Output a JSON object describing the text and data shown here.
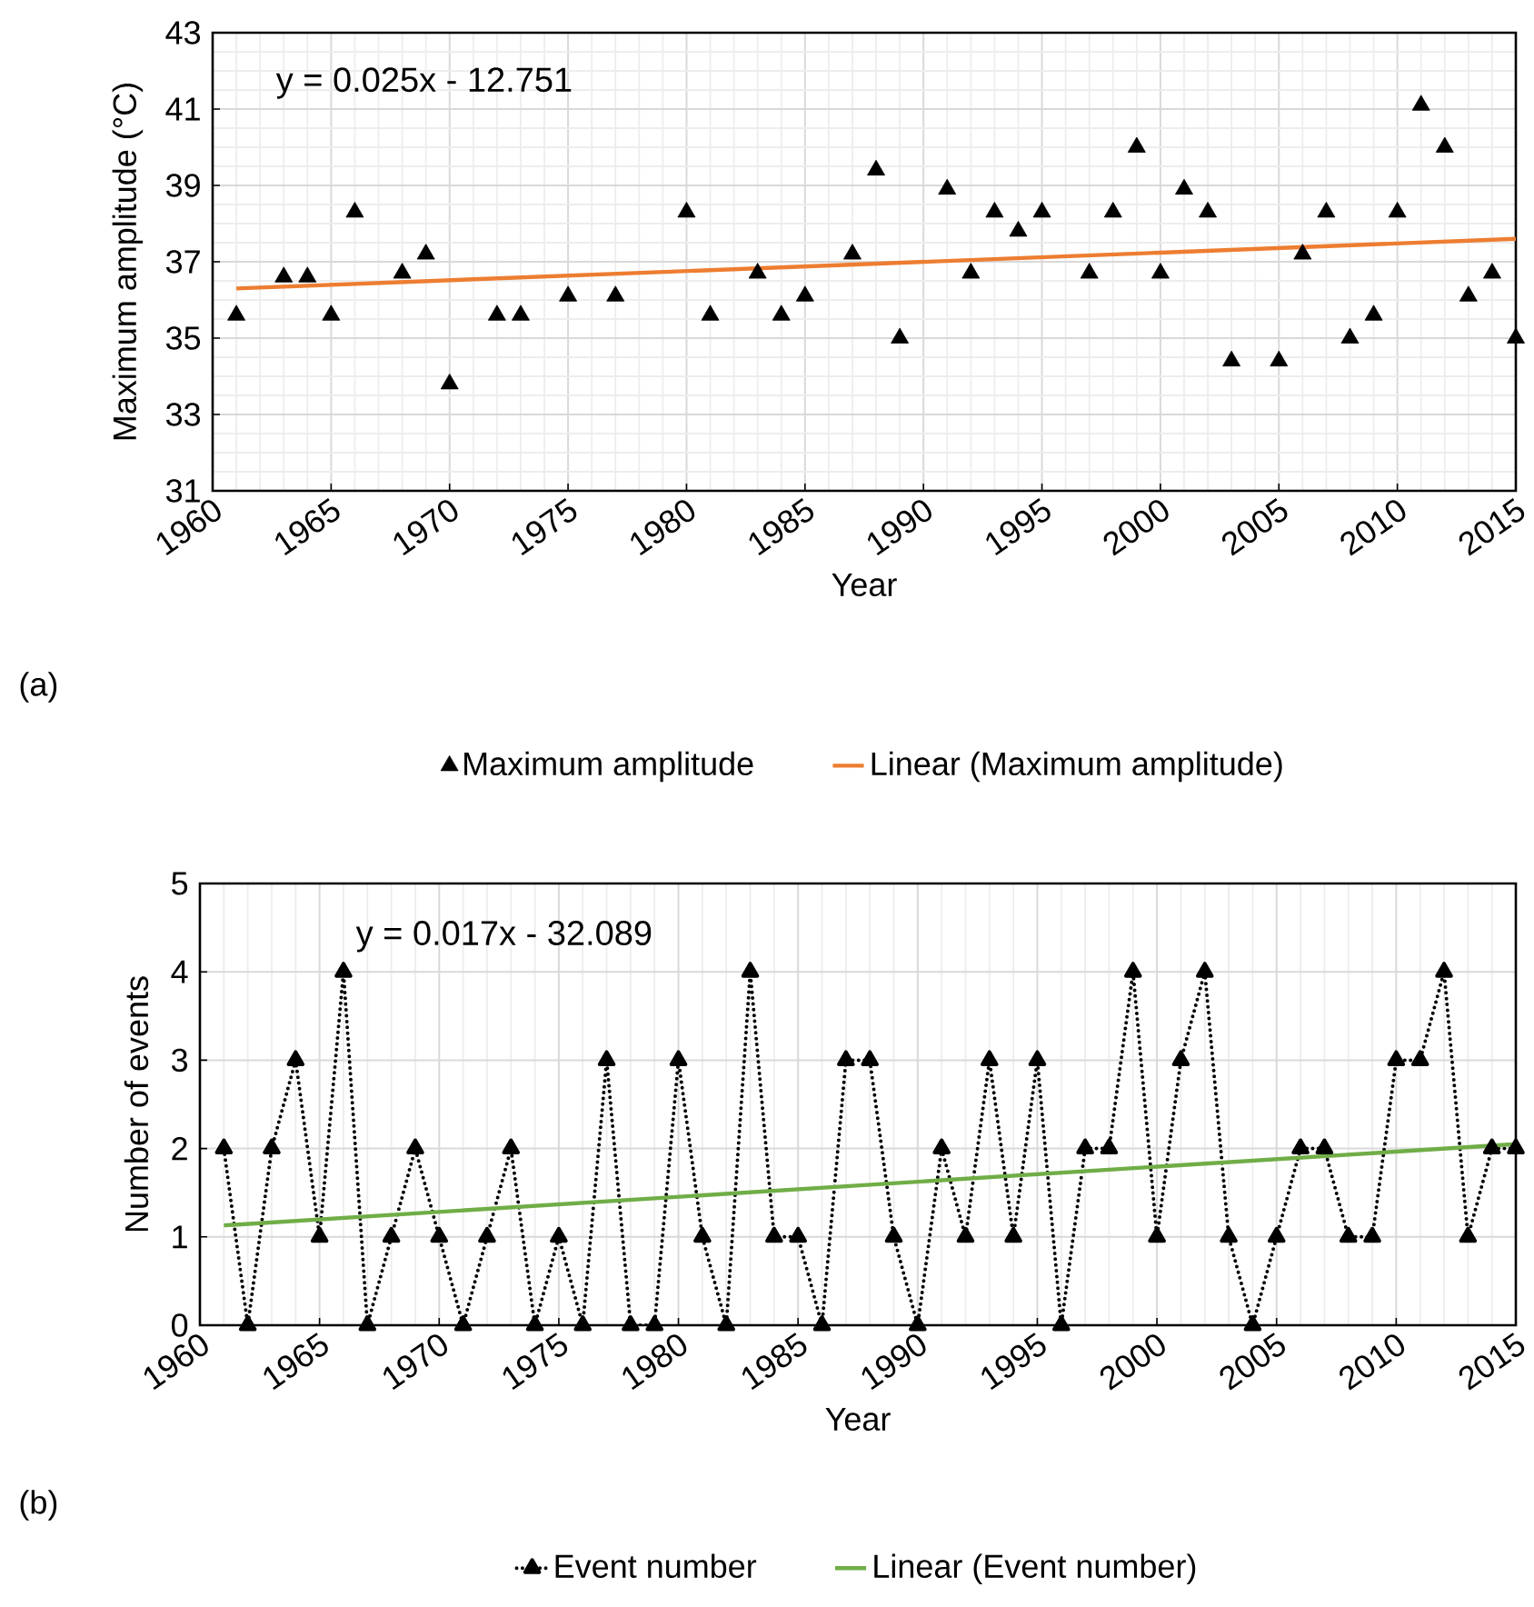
{
  "chart_data": [
    {
      "type": "scatter",
      "xlabel": "Year",
      "ylabel": "Maximum amplitude (°C)",
      "annotations": [
        "y = 0.025x - 12.751",
        "(a)"
      ],
      "xlim": [
        1960,
        2015
      ],
      "xticks": [
        1960,
        1965,
        1970,
        1975,
        1980,
        1985,
        1990,
        1995,
        2000,
        2005,
        2010,
        2015
      ],
      "ylim": [
        31,
        43
      ],
      "yticks": [
        31,
        33,
        35,
        37,
        39,
        41,
        43
      ],
      "grid": true,
      "legend": "bottom",
      "marker": "triangle",
      "series": [
        {
          "name": "Maximum amplitude",
          "color": "#000000",
          "x": [
            1961,
            1963,
            1964,
            1965,
            1966,
            1968,
            1969,
            1970,
            1972,
            1973,
            1975,
            1977,
            1980,
            1981,
            1983,
            1984,
            1985,
            1987,
            1988,
            1989,
            1991,
            1992,
            1993,
            1994,
            1995,
            1997,
            1998,
            1999,
            2000,
            2001,
            2002,
            2003,
            2005,
            2006,
            2007,
            2008,
            2009,
            2010,
            2011,
            2012,
            2013,
            2014,
            2015
          ],
          "values": [
            35.6,
            36.6,
            36.6,
            35.6,
            38.3,
            36.7,
            37.2,
            33.8,
            35.6,
            35.6,
            36.1,
            36.1,
            38.3,
            35.6,
            36.7,
            35.6,
            36.1,
            37.2,
            39.4,
            35.0,
            38.9,
            36.7,
            38.3,
            37.8,
            38.3,
            36.7,
            38.3,
            40.0,
            36.7,
            38.9,
            38.3,
            34.4,
            34.4,
            37.2,
            38.3,
            35.0,
            35.6,
            38.3,
            41.1,
            40.0,
            36.1,
            36.7,
            35.0
          ]
        },
        {
          "name": "Linear (Maximum amplitude)",
          "type": "line",
          "color": "#ed7d31",
          "marker": "none",
          "line_style": "solid",
          "x": [
            1961,
            2015
          ],
          "values": [
            36.3,
            37.6
          ]
        }
      ]
    },
    {
      "type": "line",
      "xlabel": "Year",
      "ylabel": "Number of events",
      "annotations": [
        "y = 0.017x - 32.089",
        "(b)"
      ],
      "xlim": [
        1960,
        2015
      ],
      "xticks": [
        1960,
        1965,
        1970,
        1975,
        1980,
        1985,
        1990,
        1995,
        2000,
        2005,
        2010,
        2015
      ],
      "ylim": [
        0,
        5
      ],
      "yticks": [
        0,
        1,
        2,
        3,
        4,
        5
      ],
      "grid": true,
      "legend": "bottom",
      "marker": "triangle",
      "series": [
        {
          "name": "Event number",
          "color": "#000000",
          "line_style": "dotted",
          "x": [
            1961,
            1962,
            1963,
            1964,
            1965,
            1966,
            1967,
            1968,
            1969,
            1970,
            1971,
            1972,
            1973,
            1974,
            1975,
            1976,
            1977,
            1978,
            1979,
            1980,
            1981,
            1982,
            1983,
            1984,
            1985,
            1986,
            1987,
            1988,
            1989,
            1990,
            1991,
            1992,
            1993,
            1994,
            1995,
            1996,
            1997,
            1998,
            1999,
            2000,
            2001,
            2002,
            2003,
            2004,
            2005,
            2006,
            2007,
            2008,
            2009,
            2010,
            2011,
            2012,
            2013,
            2014,
            2015
          ],
          "values": [
            2,
            0,
            2,
            3,
            1,
            4,
            0,
            1,
            2,
            1,
            0,
            1,
            2,
            0,
            1,
            0,
            3,
            0,
            0,
            3,
            1,
            0,
            4,
            1,
            1,
            0,
            3,
            3,
            1,
            0,
            2,
            1,
            3,
            1,
            3,
            0,
            2,
            2,
            4,
            1,
            3,
            4,
            1,
            0,
            1,
            2,
            2,
            1,
            1,
            3,
            3,
            4,
            1,
            2,
            2
          ]
        },
        {
          "name": "Linear (Event number)",
          "color": "#70ad47",
          "marker": "none",
          "line_style": "solid",
          "x": [
            1961,
            2015
          ],
          "values": [
            1.13,
            2.05
          ]
        }
      ]
    }
  ]
}
